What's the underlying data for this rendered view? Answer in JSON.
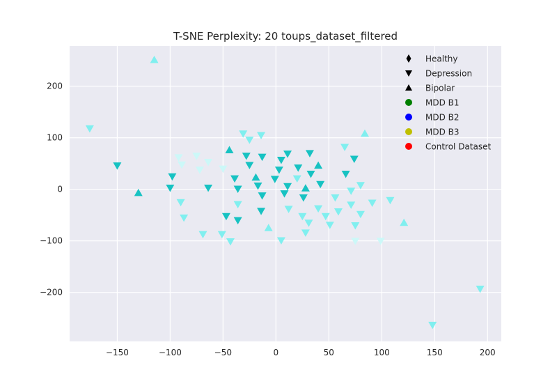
{
  "chart_data": {
    "type": "scatter",
    "title": "T-SNE Perplexity: 20 toups_dataset_filtered",
    "xlabel": "",
    "ylabel": "",
    "xlim": [
      -195,
      213
    ],
    "ylim": [
      -295,
      278
    ],
    "xticks": [
      -150,
      -100,
      -50,
      0,
      50,
      100,
      150,
      200
    ],
    "yticks": [
      -200,
      -100,
      0,
      100,
      200
    ],
    "xtick_labels": [
      "−150",
      "−100",
      "−50",
      "0",
      "50",
      "100",
      "150",
      "200"
    ],
    "ytick_labels": [
      "−200",
      "−100",
      "0",
      "100",
      "200"
    ],
    "grid": true,
    "legend_position": "top-right",
    "colors": {
      "background": "#eaeaf2",
      "grid": "#ffffff",
      "teal": "#17c2c2",
      "cyan": "#80efef",
      "pale": "#ccf8f8"
    },
    "legend": [
      {
        "label": "Healthy",
        "marker": "diamond",
        "color": "#000000"
      },
      {
        "label": "Depression",
        "marker": "triangle-down",
        "color": "#000000"
      },
      {
        "label": "Bipolar",
        "marker": "triangle-up",
        "color": "#000000"
      },
      {
        "label": "MDD B1",
        "marker": "circle",
        "color": "#007f00"
      },
      {
        "label": "MDD B2",
        "marker": "circle",
        "color": "#0000ff"
      },
      {
        "label": "MDD B3",
        "marker": "circle",
        "color": "#bfbf00"
      },
      {
        "label": "Control Dataset",
        "marker": "circle",
        "color": "#ff0000"
      }
    ],
    "points": [
      {
        "x": -115,
        "y": 251,
        "marker": "up",
        "color": "cyan"
      },
      {
        "x": -176,
        "y": 118,
        "marker": "down",
        "color": "cyan"
      },
      {
        "x": -150,
        "y": 46,
        "marker": "down",
        "color": "teal"
      },
      {
        "x": -130,
        "y": -7,
        "marker": "up",
        "color": "teal"
      },
      {
        "x": -98,
        "y": 25,
        "marker": "down",
        "color": "teal"
      },
      {
        "x": -100,
        "y": 3,
        "marker": "down",
        "color": "teal"
      },
      {
        "x": -92,
        "y": 62,
        "marker": "down",
        "color": "pale"
      },
      {
        "x": -89,
        "y": 48,
        "marker": "down",
        "color": "pale"
      },
      {
        "x": -90,
        "y": -25,
        "marker": "down",
        "color": "cyan"
      },
      {
        "x": -87,
        "y": -55,
        "marker": "down",
        "color": "cyan"
      },
      {
        "x": -75,
        "y": 65,
        "marker": "down",
        "color": "pale"
      },
      {
        "x": -72,
        "y": 38,
        "marker": "down",
        "color": "pale"
      },
      {
        "x": -64,
        "y": 53,
        "marker": "down",
        "color": "pale"
      },
      {
        "x": -64,
        "y": 3,
        "marker": "down",
        "color": "teal"
      },
      {
        "x": -69,
        "y": -87,
        "marker": "down",
        "color": "cyan"
      },
      {
        "x": -51,
        "y": -87,
        "marker": "down",
        "color": "cyan"
      },
      {
        "x": -50,
        "y": 40,
        "marker": "down",
        "color": "pale"
      },
      {
        "x": -44,
        "y": 76,
        "marker": "up",
        "color": "teal"
      },
      {
        "x": -47,
        "y": -52,
        "marker": "down",
        "color": "teal"
      },
      {
        "x": -43,
        "y": -101,
        "marker": "down",
        "color": "cyan"
      },
      {
        "x": -39,
        "y": 21,
        "marker": "down",
        "color": "teal"
      },
      {
        "x": -36,
        "y": 1,
        "marker": "down",
        "color": "teal"
      },
      {
        "x": -36,
        "y": -29,
        "marker": "down",
        "color": "cyan"
      },
      {
        "x": -36,
        "y": -60,
        "marker": "down",
        "color": "teal"
      },
      {
        "x": -31,
        "y": 108,
        "marker": "down",
        "color": "cyan"
      },
      {
        "x": -28,
        "y": 65,
        "marker": "down",
        "color": "teal"
      },
      {
        "x": -25,
        "y": 96,
        "marker": "down",
        "color": "cyan"
      },
      {
        "x": -25,
        "y": 47,
        "marker": "down",
        "color": "teal"
      },
      {
        "x": -19,
        "y": 23,
        "marker": "up",
        "color": "teal"
      },
      {
        "x": -17,
        "y": 7,
        "marker": "down",
        "color": "teal"
      },
      {
        "x": -14,
        "y": 105,
        "marker": "down",
        "color": "cyan"
      },
      {
        "x": -13,
        "y": 63,
        "marker": "down",
        "color": "teal"
      },
      {
        "x": -13,
        "y": -12,
        "marker": "down",
        "color": "teal"
      },
      {
        "x": -14,
        "y": -42,
        "marker": "down",
        "color": "teal"
      },
      {
        "x": -7,
        "y": -75,
        "marker": "up",
        "color": "cyan"
      },
      {
        "x": -1,
        "y": 20,
        "marker": "down",
        "color": "teal"
      },
      {
        "x": 3,
        "y": 38,
        "marker": "down",
        "color": "teal"
      },
      {
        "x": 5,
        "y": 57,
        "marker": "down",
        "color": "teal"
      },
      {
        "x": 5,
        "y": -99,
        "marker": "down",
        "color": "cyan"
      },
      {
        "x": 8,
        "y": -8,
        "marker": "down",
        "color": "teal"
      },
      {
        "x": 11,
        "y": 69,
        "marker": "down",
        "color": "teal"
      },
      {
        "x": 11,
        "y": 6,
        "marker": "down",
        "color": "teal"
      },
      {
        "x": 12,
        "y": -38,
        "marker": "down",
        "color": "cyan"
      },
      {
        "x": 20,
        "y": 21,
        "marker": "down",
        "color": "cyan"
      },
      {
        "x": 21,
        "y": 42,
        "marker": "down",
        "color": "teal"
      },
      {
        "x": 25,
        "y": -52,
        "marker": "down",
        "color": "cyan"
      },
      {
        "x": 26,
        "y": -16,
        "marker": "down",
        "color": "teal"
      },
      {
        "x": 28,
        "y": 2,
        "marker": "up",
        "color": "teal"
      },
      {
        "x": 28,
        "y": -84,
        "marker": "down",
        "color": "cyan"
      },
      {
        "x": 31,
        "y": -65,
        "marker": "down",
        "color": "cyan"
      },
      {
        "x": 32,
        "y": 70,
        "marker": "down",
        "color": "teal"
      },
      {
        "x": 33,
        "y": 30,
        "marker": "down",
        "color": "teal"
      },
      {
        "x": 40,
        "y": 46,
        "marker": "up",
        "color": "teal"
      },
      {
        "x": 40,
        "y": -37,
        "marker": "down",
        "color": "cyan"
      },
      {
        "x": 42,
        "y": 10,
        "marker": "down",
        "color": "teal"
      },
      {
        "x": 47,
        "y": -52,
        "marker": "down",
        "color": "cyan"
      },
      {
        "x": 51,
        "y": -69,
        "marker": "down",
        "color": "cyan"
      },
      {
        "x": 56,
        "y": -16,
        "marker": "down",
        "color": "cyan"
      },
      {
        "x": 59,
        "y": -43,
        "marker": "down",
        "color": "cyan"
      },
      {
        "x": 65,
        "y": 82,
        "marker": "down",
        "color": "cyan"
      },
      {
        "x": 66,
        "y": 30,
        "marker": "down",
        "color": "teal"
      },
      {
        "x": 71,
        "y": -3,
        "marker": "down",
        "color": "cyan"
      },
      {
        "x": 71,
        "y": -30,
        "marker": "down",
        "color": "cyan"
      },
      {
        "x": 74,
        "y": 59,
        "marker": "down",
        "color": "teal"
      },
      {
        "x": 75,
        "y": -70,
        "marker": "down",
        "color": "cyan"
      },
      {
        "x": 75,
        "y": -100,
        "marker": "down",
        "color": "pale"
      },
      {
        "x": 80,
        "y": 8,
        "marker": "down",
        "color": "cyan"
      },
      {
        "x": 80,
        "y": -48,
        "marker": "down",
        "color": "cyan"
      },
      {
        "x": 84,
        "y": 108,
        "marker": "up",
        "color": "cyan"
      },
      {
        "x": 91,
        "y": -26,
        "marker": "down",
        "color": "cyan"
      },
      {
        "x": 99,
        "y": -100,
        "marker": "down",
        "color": "pale"
      },
      {
        "x": 108,
        "y": -21,
        "marker": "down",
        "color": "cyan"
      },
      {
        "x": 121,
        "y": -65,
        "marker": "up",
        "color": "cyan"
      },
      {
        "x": 148,
        "y": -263,
        "marker": "down",
        "color": "cyan"
      },
      {
        "x": 193,
        "y": -193,
        "marker": "down",
        "color": "cyan"
      }
    ]
  }
}
